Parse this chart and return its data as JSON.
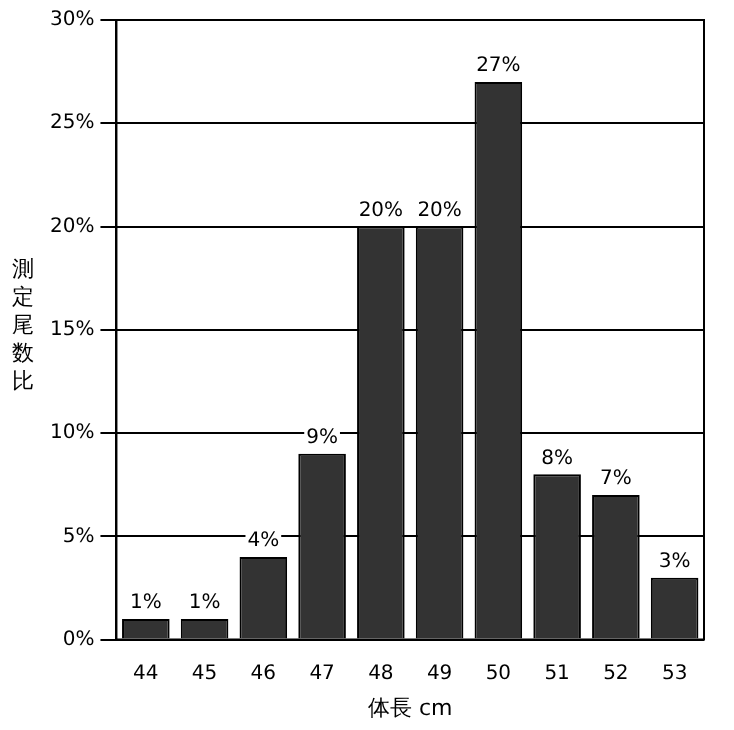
{
  "chart_data": {
    "type": "bar",
    "xlabel": "体長 cm",
    "ylabel": "測定尾数比",
    "categories": [
      "44",
      "45",
      "46",
      "47",
      "48",
      "49",
      "50",
      "51",
      "52",
      "53"
    ],
    "values": [
      1,
      1,
      4,
      9,
      20,
      20,
      27,
      8,
      7,
      3
    ],
    "value_labels": [
      "1%",
      "1%",
      "4%",
      "9%",
      "20%",
      "20%",
      "27%",
      "8%",
      "7%",
      "3%"
    ],
    "color": "#333333",
    "ylim": [
      0,
      30
    ],
    "yticks": [
      {
        "value": 0,
        "label": "0%"
      },
      {
        "value": 5,
        "label": "5%"
      },
      {
        "value": 10,
        "label": "10%"
      },
      {
        "value": 15,
        "label": "15%"
      },
      {
        "value": 20,
        "label": "20%"
      },
      {
        "value": 25,
        "label": "25%"
      },
      {
        "value": 30,
        "label": "30%"
      }
    ],
    "grid": "y",
    "legend": false
  }
}
